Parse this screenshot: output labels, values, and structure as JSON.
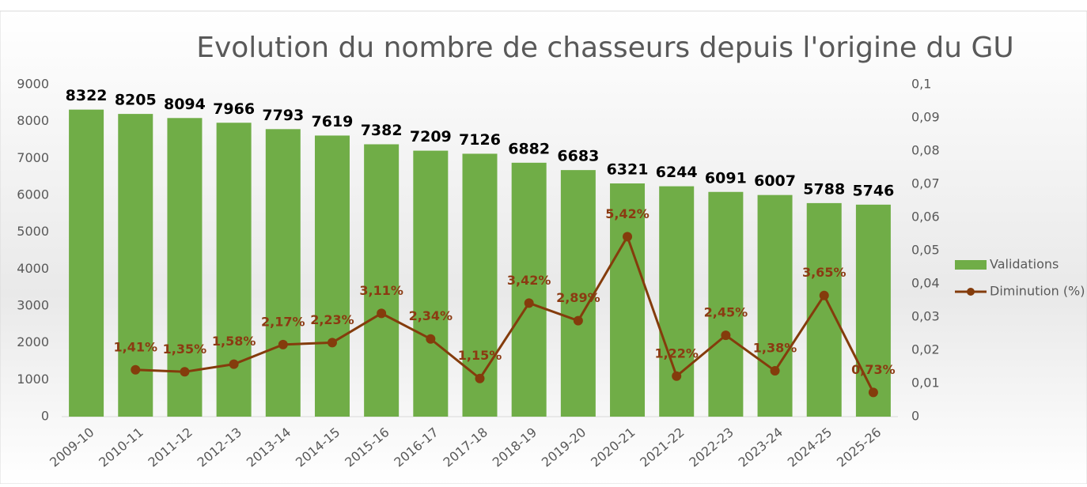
{
  "chart_data": {
    "type": "combo",
    "title": "Evolution du nombre de chasseurs depuis l'origine du GU",
    "categories": [
      "2009-10",
      "2010-11",
      "2011-12",
      "2012-13",
      "2013-14",
      "2014-15",
      "2015-16",
      "2016-17",
      "2017-18",
      "2018-19",
      "2019-20",
      "2020-21",
      "2021-22",
      "2022-23",
      "2023-24",
      "2024-25",
      "2025-26"
    ],
    "series": [
      {
        "name": "Validations",
        "type": "bar",
        "color": "#70ad47",
        "values": [
          8322,
          8205,
          8094,
          7966,
          7793,
          7619,
          7382,
          7209,
          7126,
          6882,
          6683,
          6321,
          6244,
          6091,
          6007,
          5788,
          5746
        ]
      },
      {
        "name": "Diminution (%)",
        "type": "line",
        "axis": "y2",
        "color": "#843c0c",
        "values": [
          null,
          0.0141,
          0.0135,
          0.0158,
          0.0217,
          0.0223,
          0.0311,
          0.0234,
          0.0115,
          0.0342,
          0.0289,
          0.0542,
          0.0122,
          0.0245,
          0.0138,
          0.0365,
          0.0073
        ],
        "value_labels": [
          null,
          "1,41%",
          "1,35%",
          "1,58%",
          "2,17%",
          "2,23%",
          "3,11%",
          "2,34%",
          "1,15%",
          "3,42%",
          "2,89%",
          "5,42%",
          "1,22%",
          "2,45%",
          "1,38%",
          "3,65%",
          "0,73%"
        ]
      }
    ],
    "ylim": [
      0,
      9000
    ],
    "yticks": [
      0,
      1000,
      2000,
      3000,
      4000,
      5000,
      6000,
      7000,
      8000,
      9000
    ],
    "y2lim": [
      0,
      0.1
    ],
    "y2ticks": [
      0,
      {
        "value": 0.01,
        "label": "0,01"
      },
      {
        "value": 0.02,
        "label": "0,02"
      },
      {
        "value": 0.03,
        "label": "0,03"
      },
      {
        "value": 0.04,
        "label": "0,04"
      },
      {
        "value": 0.05,
        "label": "0,05"
      },
      {
        "value": 0.06,
        "label": "0,06"
      },
      {
        "value": 0.07,
        "label": "0,07"
      },
      {
        "value": 0.08,
        "label": "0,08"
      },
      {
        "value": 0.09,
        "label": "0,09"
      },
      {
        "value": 0.1,
        "label": "0,1"
      }
    ],
    "legend": "right"
  }
}
